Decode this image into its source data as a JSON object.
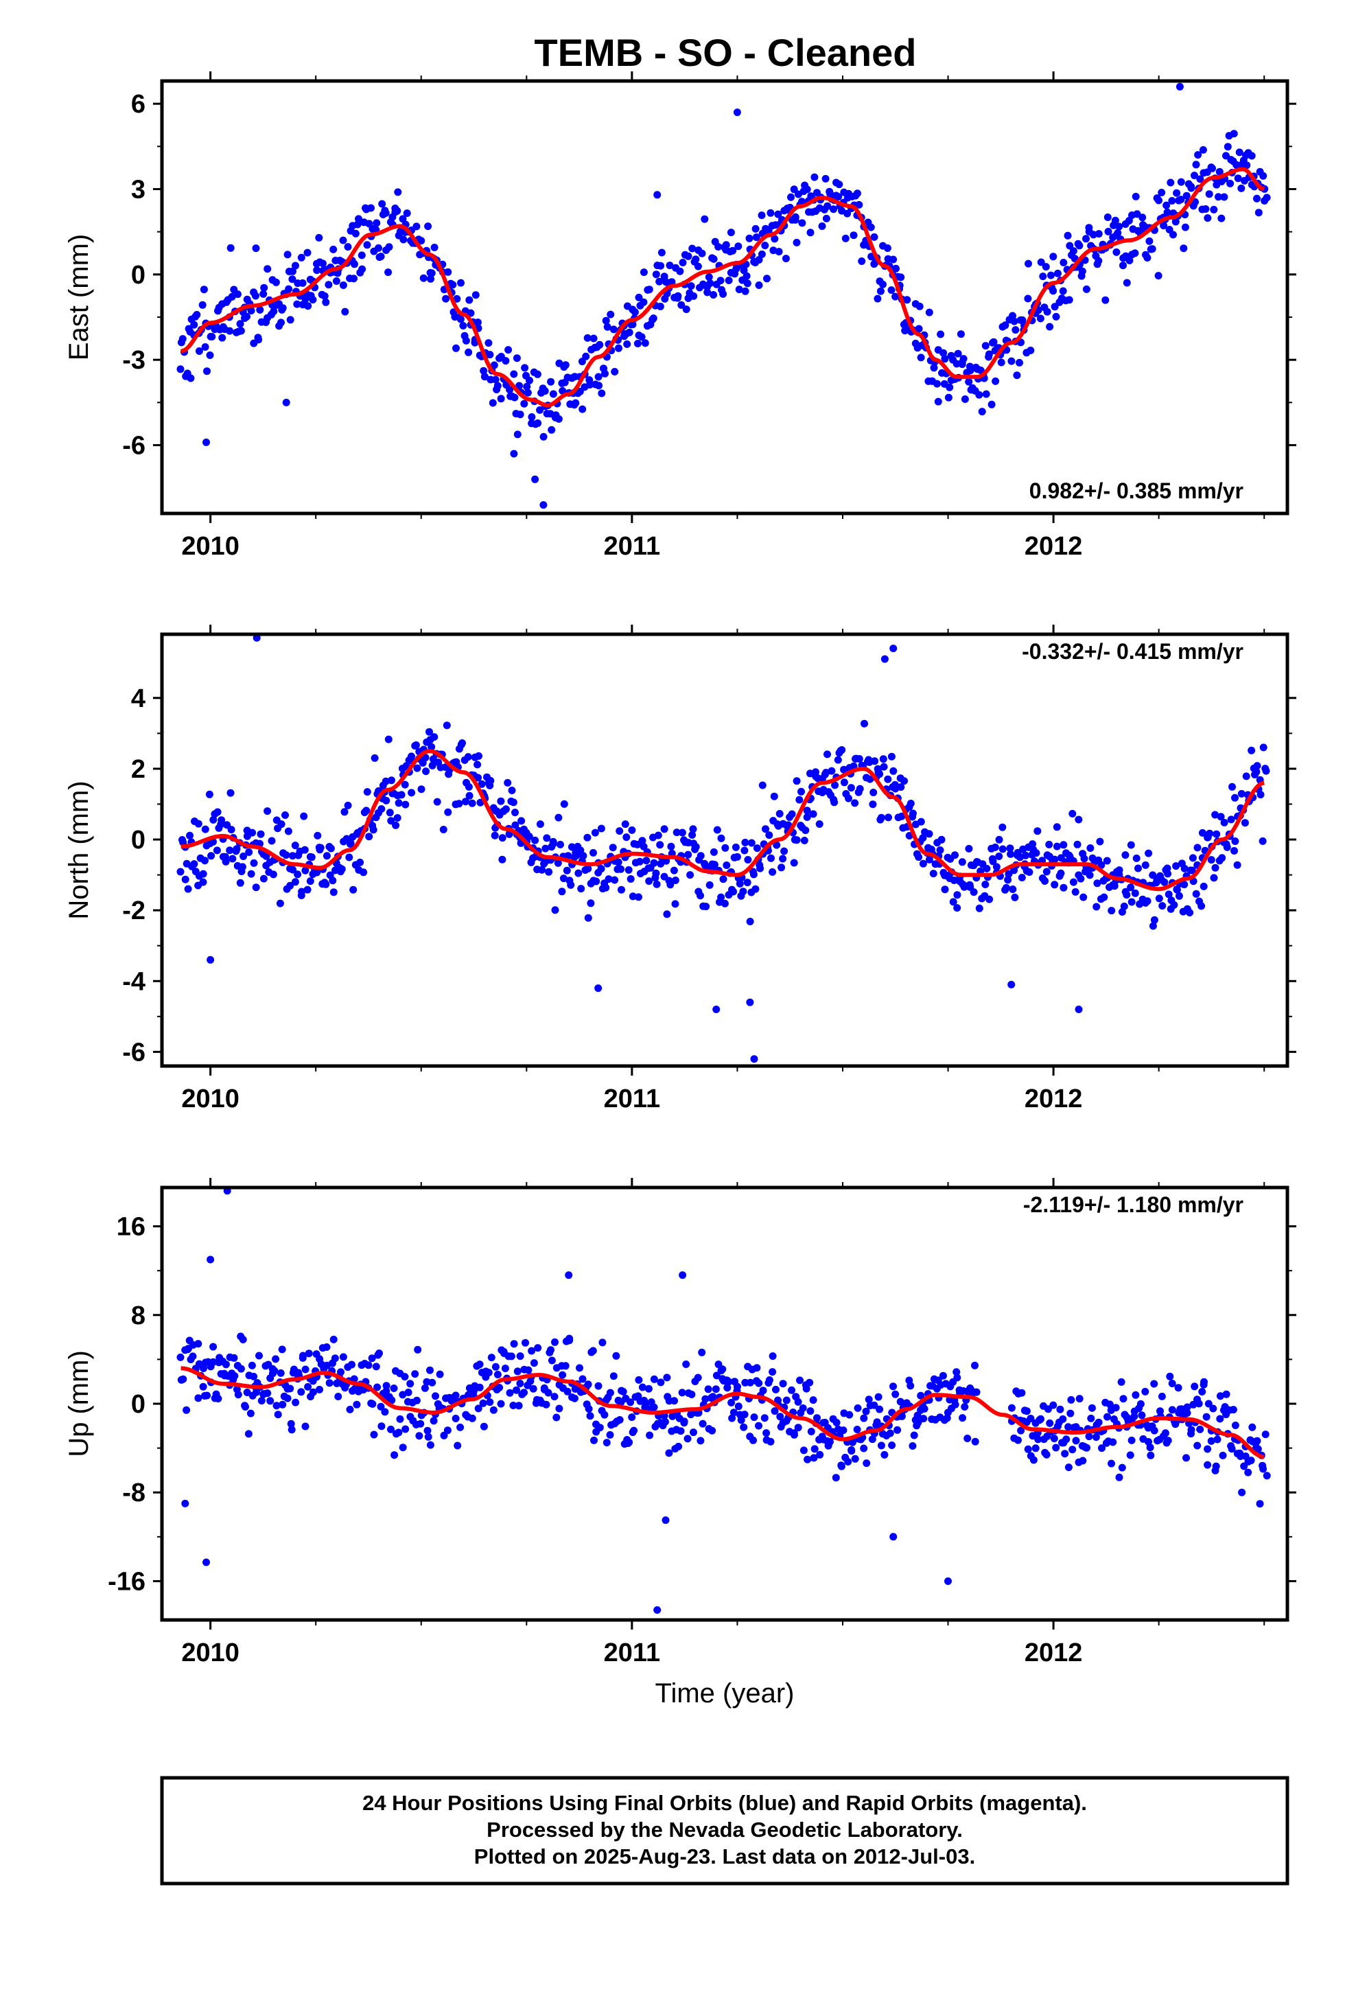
{
  "header": {
    "title": "TEMB  - SO - Cleaned"
  },
  "footer": {
    "lines": [
      "24 Hour Positions Using Final Orbits (blue) and Rapid Orbits (magenta).",
      "Processed by the Nevada Geodetic Laboratory.",
      "Plotted on 2025-Aug-23. Last data on 2012-Jul-03."
    ]
  },
  "colors": {
    "points_final": "#0000ff",
    "fit_line": "#ff0000",
    "frame": "#000000"
  },
  "chart_data": [
    {
      "type": "scatter",
      "ylabel": "East (mm)",
      "xlabel": "",
      "rate_label": "0.982+/- 0.385 mm/yr",
      "rate_position": "bottom-right",
      "xlim": [
        2009.885,
        2012.555
      ],
      "ylim": [
        -8.4,
        6.8
      ],
      "x_ticks": [
        2010,
        2011,
        2012
      ],
      "x_tick_labels": [
        "2010",
        "2011",
        "2012"
      ],
      "y_ticks": [
        -6,
        -3,
        0,
        3,
        6
      ],
      "y_tick_labels": [
        "-6",
        "-3",
        "0",
        "3",
        "6"
      ],
      "series": [
        {
          "kind": "points",
          "fit_x": [
            2009.93,
            2010.0,
            2010.1,
            2010.2,
            2010.3,
            2010.38,
            2010.45,
            2010.52,
            2010.6,
            2010.68,
            2010.76,
            2010.8,
            2010.85,
            2010.92,
            2011.0,
            2011.1,
            2011.18,
            2011.25,
            2011.33,
            2011.4,
            2011.45,
            2011.52,
            2011.6,
            2011.68,
            2011.72,
            2011.77,
            2011.82,
            2011.9,
            2012.0,
            2012.1,
            2012.18,
            2012.28,
            2012.38,
            2012.45,
            2012.5
          ],
          "fit_y": [
            -2.7,
            -1.7,
            -1.1,
            -0.7,
            0.2,
            1.4,
            1.7,
            0.7,
            -1.4,
            -3.5,
            -4.4,
            -4.6,
            -4.2,
            -2.9,
            -1.6,
            -0.4,
            0.1,
            0.4,
            1.4,
            2.4,
            2.7,
            2.4,
            0.3,
            -2.1,
            -3.0,
            -3.6,
            -3.6,
            -2.4,
            -0.3,
            0.9,
            1.2,
            2.0,
            3.4,
            3.7,
            3.0
          ],
          "noise": 1.2,
          "outliers": [
            [
              2011.25,
              5.7
            ],
            [
              2010.79,
              -8.1
            ],
            [
              2010.77,
              -7.2
            ],
            [
              2010.72,
              -6.3
            ],
            [
              2010.18,
              -4.5
            ],
            [
              2012.3,
              6.6
            ],
            [
              2011.06,
              2.8
            ],
            [
              2009.99,
              -5.9
            ]
          ],
          "seed": 11
        },
        {
          "kind": "fit",
          "x": [
            2009.93,
            2010.0,
            2010.1,
            2010.2,
            2010.3,
            2010.38,
            2010.45,
            2010.52,
            2010.6,
            2010.68,
            2010.76,
            2010.8,
            2010.85,
            2010.92,
            2011.0,
            2011.1,
            2011.18,
            2011.25,
            2011.33,
            2011.4,
            2011.45,
            2011.52,
            2011.6,
            2011.68,
            2011.72,
            2011.77,
            2011.82,
            2011.9,
            2012.0,
            2012.1,
            2012.18,
            2012.28,
            2012.38,
            2012.45,
            2012.5
          ],
          "y": [
            -2.7,
            -1.7,
            -1.1,
            -0.7,
            0.2,
            1.4,
            1.7,
            0.7,
            -1.4,
            -3.5,
            -4.4,
            -4.6,
            -4.2,
            -2.9,
            -1.6,
            -0.4,
            0.1,
            0.4,
            1.4,
            2.4,
            2.7,
            2.4,
            0.3,
            -2.1,
            -3.0,
            -3.6,
            -3.6,
            -2.4,
            -0.3,
            0.9,
            1.2,
            2.0,
            3.4,
            3.7,
            3.0
          ]
        }
      ]
    },
    {
      "type": "scatter",
      "ylabel": "North (mm)",
      "xlabel": "",
      "rate_label": "-0.332+/- 0.415 mm/yr",
      "rate_position": "top-right",
      "xlim": [
        2009.885,
        2012.555
      ],
      "ylim": [
        -6.4,
        5.8
      ],
      "x_ticks": [
        2010,
        2011,
        2012
      ],
      "x_tick_labels": [
        "2010",
        "2011",
        "2012"
      ],
      "y_ticks": [
        -6,
        -4,
        -2,
        0,
        2,
        4
      ],
      "y_tick_labels": [
        "-6",
        "-4",
        "-2",
        "0",
        "2",
        "4"
      ],
      "series": [
        {
          "kind": "points",
          "fit_x": [
            2009.93,
            2010.03,
            2010.1,
            2010.2,
            2010.26,
            2010.33,
            2010.42,
            2010.52,
            2010.6,
            2010.7,
            2010.8,
            2010.9,
            2011.0,
            2011.1,
            2011.18,
            2011.25,
            2011.35,
            2011.45,
            2011.55,
            2011.62,
            2011.7,
            2011.78,
            2011.85,
            2011.92,
            2012.0,
            2012.08,
            2012.15,
            2012.25,
            2012.32,
            2012.4,
            2012.5
          ],
          "fit_y": [
            -0.2,
            0.1,
            -0.2,
            -0.7,
            -0.8,
            -0.3,
            1.4,
            2.5,
            1.9,
            0.3,
            -0.5,
            -0.7,
            -0.4,
            -0.5,
            -0.9,
            -1.0,
            0.0,
            1.6,
            2.0,
            1.2,
            -0.4,
            -1.0,
            -1.0,
            -0.7,
            -0.7,
            -0.7,
            -1.1,
            -1.4,
            -1.1,
            0.0,
            1.6
          ],
          "noise": 1.0,
          "outliers": [
            [
              2010.11,
              5.7
            ],
            [
              2011.62,
              5.4
            ],
            [
              2011.6,
              5.1
            ],
            [
              2011.29,
              -6.2
            ],
            [
              2011.28,
              -4.6
            ],
            [
              2010.92,
              -4.2
            ],
            [
              2010.0,
              -3.4
            ],
            [
              2011.2,
              -4.8
            ],
            [
              2012.06,
              -4.8
            ],
            [
              2011.9,
              -4.1
            ]
          ],
          "seed": 23
        },
        {
          "kind": "fit",
          "x": [
            2009.93,
            2010.03,
            2010.1,
            2010.2,
            2010.26,
            2010.33,
            2010.42,
            2010.52,
            2010.6,
            2010.7,
            2010.8,
            2010.9,
            2011.0,
            2011.1,
            2011.18,
            2011.25,
            2011.35,
            2011.45,
            2011.55,
            2011.62,
            2011.7,
            2011.78,
            2011.85,
            2011.92,
            2012.0,
            2012.08,
            2012.15,
            2012.25,
            2012.32,
            2012.4,
            2012.5
          ],
          "y": [
            -0.2,
            0.1,
            -0.2,
            -0.7,
            -0.8,
            -0.3,
            1.4,
            2.5,
            1.9,
            0.3,
            -0.5,
            -0.7,
            -0.4,
            -0.5,
            -0.9,
            -1.0,
            0.0,
            1.6,
            2.0,
            1.2,
            -0.4,
            -1.0,
            -1.0,
            -0.7,
            -0.7,
            -0.7,
            -1.1,
            -1.4,
            -1.1,
            0.0,
            1.6
          ]
        }
      ]
    },
    {
      "type": "scatter",
      "ylabel": "Up (mm)",
      "xlabel": "Time (year)",
      "rate_label": "-2.119+/- 1.180 mm/yr",
      "rate_position": "top-right",
      "xlim": [
        2009.885,
        2012.555
      ],
      "ylim": [
        -19.5,
        19.5
      ],
      "x_ticks": [
        2010,
        2011,
        2012
      ],
      "x_tick_labels": [
        "2010",
        "2011",
        "2012"
      ],
      "y_ticks": [
        -16,
        -8,
        0,
        8,
        16
      ],
      "y_tick_labels": [
        "-16",
        "-8",
        "0",
        "8",
        "16"
      ],
      "series": [
        {
          "kind": "points",
          "fit_x": [
            2009.93,
            2010.03,
            2010.12,
            2010.2,
            2010.27,
            2010.35,
            2010.45,
            2010.53,
            2010.62,
            2010.7,
            2010.78,
            2010.85,
            2010.95,
            2011.05,
            2011.15,
            2011.25,
            2011.3,
            2011.4,
            2011.5,
            2011.58,
            2011.65,
            2011.72,
            2011.8,
            2011.88,
            2011.95,
            2012.05,
            2012.15,
            2012.25,
            2012.32,
            2012.42,
            2012.5
          ],
          "fit_y": [
            3.2,
            1.8,
            1.5,
            2.2,
            2.8,
            1.8,
            -0.4,
            -0.8,
            0.4,
            2.2,
            2.6,
            2.0,
            -0.2,
            -0.8,
            -0.5,
            0.9,
            0.6,
            -1.3,
            -3.2,
            -2.4,
            -0.5,
            0.8,
            0.6,
            -1.0,
            -2.3,
            -2.6,
            -2.1,
            -1.3,
            -1.4,
            -2.8,
            -4.8
          ],
          "noise": 3.3,
          "outliers": [
            [
              2010.04,
              19.2
            ],
            [
              2009.99,
              -14.3
            ],
            [
              2011.06,
              -18.6
            ],
            [
              2011.75,
              -16.0
            ],
            [
              2011.62,
              -12.0
            ],
            [
              2010.0,
              13.0
            ],
            [
              2011.12,
              11.6
            ],
            [
              2010.85,
              11.6
            ],
            [
              2009.94,
              -9.0
            ],
            [
              2011.08,
              -10.5
            ]
          ],
          "seed": 37
        },
        {
          "kind": "fit",
          "x": [
            2009.93,
            2010.03,
            2010.12,
            2010.2,
            2010.27,
            2010.35,
            2010.45,
            2010.53,
            2010.62,
            2010.7,
            2010.78,
            2010.85,
            2010.95,
            2011.05,
            2011.15,
            2011.25,
            2011.3,
            2011.4,
            2011.5,
            2011.58,
            2011.65,
            2011.72,
            2011.8,
            2011.88,
            2011.95,
            2012.05,
            2012.15,
            2012.25,
            2012.32,
            2012.42,
            2012.5
          ],
          "y": [
            3.2,
            1.8,
            1.5,
            2.2,
            2.8,
            1.8,
            -0.4,
            -0.8,
            0.4,
            2.2,
            2.6,
            2.0,
            -0.2,
            -0.8,
            -0.5,
            0.9,
            0.6,
            -1.3,
            -3.2,
            -2.4,
            -0.5,
            0.8,
            0.6,
            -1.0,
            -2.3,
            -2.6,
            -2.1,
            -1.3,
            -1.4,
            -2.8,
            -4.8
          ]
        }
      ]
    }
  ]
}
